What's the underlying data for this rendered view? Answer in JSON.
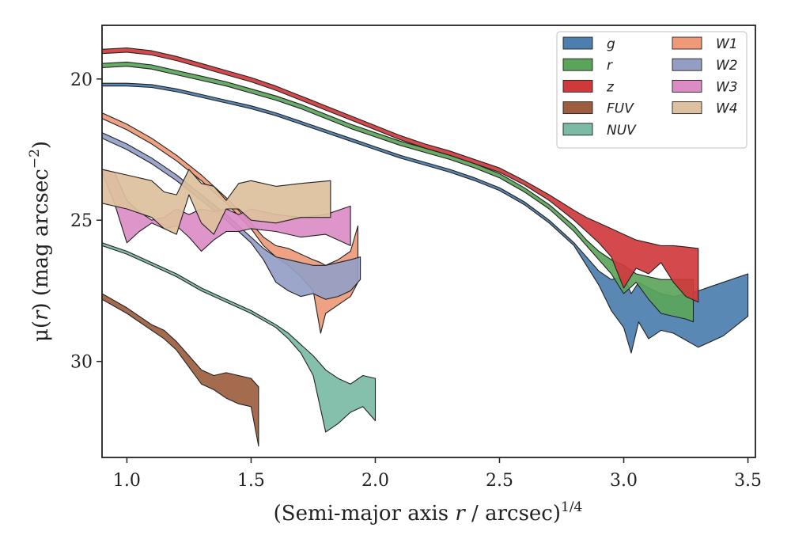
{
  "chart_data": {
    "type": "area",
    "xlabel_main": "(Semi-major axis ",
    "xlabel_var": "r",
    "xlabel_rest": " / arcsec)",
    "xlabel_sup": "1/4",
    "ylabel_mu": "μ(",
    "ylabel_var": "r",
    "ylabel_rest": ") (mag arcsec",
    "ylabel_sup": "−2",
    "ylabel_end": ")",
    "xlim": [
      0.9,
      3.53
    ],
    "ylim": [
      33.4,
      18.1
    ],
    "xticks": [
      {
        "v": 1.0,
        "label": "1.0"
      },
      {
        "v": 1.5,
        "label": "1.5"
      },
      {
        "v": 2.0,
        "label": "2.0"
      },
      {
        "v": 2.5,
        "label": "2.5"
      },
      {
        "v": 3.0,
        "label": "3.0"
      },
      {
        "v": 3.5,
        "label": "3.5"
      }
    ],
    "yticks": [
      {
        "v": 20,
        "label": "20"
      },
      {
        "v": 25,
        "label": "25"
      },
      {
        "v": 30,
        "label": "30"
      }
    ],
    "legend_position": "top-right",
    "series": [
      {
        "name": "g",
        "color": "#4C7EAE",
        "x": [
          0.9,
          1.0,
          1.1,
          1.2,
          1.3,
          1.4,
          1.5,
          1.6,
          1.7,
          1.8,
          1.9,
          2.0,
          2.1,
          2.2,
          2.3,
          2.4,
          2.5,
          2.6,
          2.7,
          2.8,
          2.85,
          2.9,
          2.95,
          3.0,
          3.03,
          3.06,
          3.1,
          3.15,
          3.2,
          3.3,
          3.4,
          3.5
        ],
        "lo": [
          20.15,
          20.15,
          20.2,
          20.35,
          20.55,
          20.75,
          20.95,
          21.2,
          21.5,
          21.8,
          22.1,
          22.4,
          22.7,
          22.95,
          23.2,
          23.5,
          23.85,
          24.35,
          25.0,
          25.8,
          26.3,
          26.8,
          27.1,
          27.0,
          27.6,
          27.2,
          27.4,
          27.6,
          27.7,
          27.5,
          27.2,
          26.9
        ],
        "hi": [
          20.25,
          20.25,
          20.3,
          20.45,
          20.65,
          20.85,
          21.05,
          21.3,
          21.6,
          21.9,
          22.2,
          22.5,
          22.8,
          23.05,
          23.3,
          23.6,
          23.95,
          24.45,
          25.1,
          25.9,
          26.6,
          27.3,
          28.2,
          28.8,
          29.7,
          28.6,
          29.2,
          28.9,
          29.0,
          29.5,
          29.1,
          28.4
        ]
      },
      {
        "name": "r",
        "color": "#5BA55B",
        "x": [
          0.9,
          1.0,
          1.1,
          1.2,
          1.3,
          1.4,
          1.5,
          1.6,
          1.7,
          1.8,
          1.9,
          2.0,
          2.1,
          2.2,
          2.3,
          2.4,
          2.5,
          2.6,
          2.7,
          2.8,
          2.85,
          2.9,
          2.95,
          3.0,
          3.05,
          3.1,
          3.15,
          3.2,
          3.25,
          3.28
        ],
        "lo": [
          19.45,
          19.4,
          19.5,
          19.7,
          19.9,
          20.1,
          20.35,
          20.6,
          20.9,
          21.25,
          21.6,
          21.9,
          22.2,
          22.45,
          22.7,
          23.0,
          23.35,
          23.85,
          24.45,
          25.2,
          25.7,
          26.1,
          26.4,
          26.6,
          26.9,
          27.0,
          27.1,
          27.1,
          27.1,
          27.1
        ],
        "hi": [
          19.6,
          19.55,
          19.65,
          19.85,
          20.05,
          20.25,
          20.5,
          20.75,
          21.05,
          21.4,
          21.75,
          22.05,
          22.35,
          22.6,
          22.85,
          23.15,
          23.5,
          24.0,
          24.6,
          25.4,
          25.9,
          26.4,
          26.9,
          27.6,
          27.2,
          27.8,
          28.3,
          28.4,
          28.5,
          28.6
        ]
      },
      {
        "name": "z",
        "color": "#D0393C",
        "x": [
          0.9,
          1.0,
          1.1,
          1.2,
          1.3,
          1.4,
          1.5,
          1.6,
          1.7,
          1.8,
          1.9,
          2.0,
          2.1,
          2.2,
          2.3,
          2.4,
          2.5,
          2.6,
          2.7,
          2.8,
          2.85,
          2.9,
          2.95,
          3.0,
          3.05,
          3.1,
          3.15,
          3.2,
          3.25,
          3.3
        ],
        "lo": [
          18.95,
          18.9,
          19.0,
          19.2,
          19.45,
          19.7,
          19.95,
          20.25,
          20.6,
          20.95,
          21.3,
          21.65,
          22.0,
          22.3,
          22.55,
          22.85,
          23.15,
          23.6,
          24.1,
          24.65,
          24.9,
          25.1,
          25.3,
          25.5,
          25.7,
          25.8,
          25.9,
          25.9,
          25.95,
          26.0
        ],
        "hi": [
          19.1,
          19.05,
          19.15,
          19.35,
          19.6,
          19.85,
          20.1,
          20.4,
          20.75,
          21.1,
          21.45,
          21.8,
          22.15,
          22.45,
          22.7,
          23.0,
          23.3,
          23.75,
          24.3,
          25.0,
          25.4,
          25.8,
          26.3,
          27.4,
          26.7,
          26.9,
          26.5,
          27.2,
          27.7,
          27.9
        ]
      },
      {
        "name": "FUV",
        "color": "#9C5E3F",
        "x": [
          0.9,
          1.0,
          1.1,
          1.15,
          1.2,
          1.25,
          1.3,
          1.35,
          1.4,
          1.45,
          1.5,
          1.53
        ],
        "lo": [
          27.6,
          28.1,
          28.7,
          28.9,
          29.3,
          29.8,
          30.3,
          30.5,
          30.4,
          30.5,
          30.6,
          30.9
        ],
        "hi": [
          27.8,
          28.3,
          28.9,
          29.2,
          29.6,
          30.2,
          30.8,
          31.0,
          31.3,
          31.5,
          31.6,
          33.0
        ]
      },
      {
        "name": "NUV",
        "color": "#7BBBA5",
        "x": [
          0.9,
          1.0,
          1.1,
          1.2,
          1.3,
          1.4,
          1.5,
          1.6,
          1.65,
          1.7,
          1.75,
          1.8,
          1.85,
          1.9,
          1.95,
          2.0
        ],
        "lo": [
          25.8,
          26.1,
          26.5,
          26.9,
          27.4,
          27.8,
          28.2,
          28.7,
          29.0,
          29.4,
          29.8,
          30.3,
          30.6,
          30.8,
          30.5,
          30.6
        ],
        "hi": [
          25.9,
          26.2,
          26.6,
          27.0,
          27.5,
          27.9,
          28.3,
          28.8,
          29.2,
          29.7,
          30.5,
          32.5,
          32.2,
          31.8,
          31.6,
          32.1
        ]
      },
      {
        "name": "W1",
        "color": "#EE9A78",
        "x": [
          0.9,
          1.0,
          1.1,
          1.2,
          1.3,
          1.4,
          1.5,
          1.55,
          1.6,
          1.65,
          1.7,
          1.75,
          1.78,
          1.8,
          1.85,
          1.9,
          1.93
        ],
        "lo": [
          21.2,
          21.6,
          22.1,
          22.7,
          23.4,
          24.2,
          25.1,
          25.6,
          25.9,
          26.0,
          26.2,
          26.4,
          26.5,
          26.6,
          26.4,
          26.1,
          25.2
        ],
        "hi": [
          21.4,
          21.8,
          22.3,
          22.9,
          23.6,
          24.4,
          25.3,
          25.9,
          26.3,
          26.6,
          27.0,
          27.5,
          29.0,
          28.3,
          28.0,
          27.7,
          27.2
        ]
      },
      {
        "name": "W2",
        "color": "#949EC5",
        "x": [
          0.9,
          1.0,
          1.1,
          1.2,
          1.3,
          1.4,
          1.5,
          1.55,
          1.6,
          1.65,
          1.7,
          1.75,
          1.8,
          1.85,
          1.9,
          1.94
        ],
        "lo": [
          21.9,
          22.3,
          22.8,
          23.4,
          24.1,
          24.8,
          25.6,
          26.0,
          26.3,
          26.4,
          26.5,
          26.6,
          26.6,
          26.5,
          26.4,
          26.3
        ],
        "hi": [
          22.1,
          22.5,
          23.0,
          23.6,
          24.3,
          25.0,
          25.8,
          26.4,
          27.2,
          27.5,
          27.7,
          27.6,
          27.8,
          27.7,
          27.5,
          27.1
        ]
      },
      {
        "name": "W3",
        "color": "#DB8CC4",
        "x": [
          0.9,
          0.95,
          1.0,
          1.05,
          1.1,
          1.15,
          1.2,
          1.25,
          1.3,
          1.35,
          1.4,
          1.45,
          1.5,
          1.6,
          1.7,
          1.8,
          1.9
        ],
        "lo": [
          23.2,
          23.3,
          24.3,
          24.7,
          25.0,
          24.9,
          24.6,
          24.8,
          24.6,
          24.7,
          24.6,
          24.8,
          24.6,
          24.8,
          24.9,
          24.8,
          24.5
        ],
        "hi": [
          23.3,
          24.4,
          25.8,
          25.4,
          25.1,
          25.3,
          25.2,
          25.6,
          26.1,
          25.7,
          25.4,
          25.4,
          25.3,
          25.4,
          25.6,
          25.5,
          25.9
        ]
      },
      {
        "name": "W4",
        "color": "#DDC09D",
        "x": [
          0.9,
          1.0,
          1.1,
          1.15,
          1.2,
          1.25,
          1.3,
          1.35,
          1.4,
          1.45,
          1.5,
          1.6,
          1.7,
          1.82
        ],
        "lo": [
          23.2,
          23.4,
          23.6,
          24.0,
          24.1,
          23.2,
          23.7,
          23.8,
          24.3,
          23.7,
          23.6,
          23.8,
          23.7,
          23.6
        ],
        "hi": [
          24.4,
          24.6,
          24.9,
          25.3,
          25.5,
          24.1,
          25.1,
          25.5,
          24.6,
          24.6,
          25.0,
          25.1,
          24.9,
          24.9
        ]
      }
    ]
  }
}
